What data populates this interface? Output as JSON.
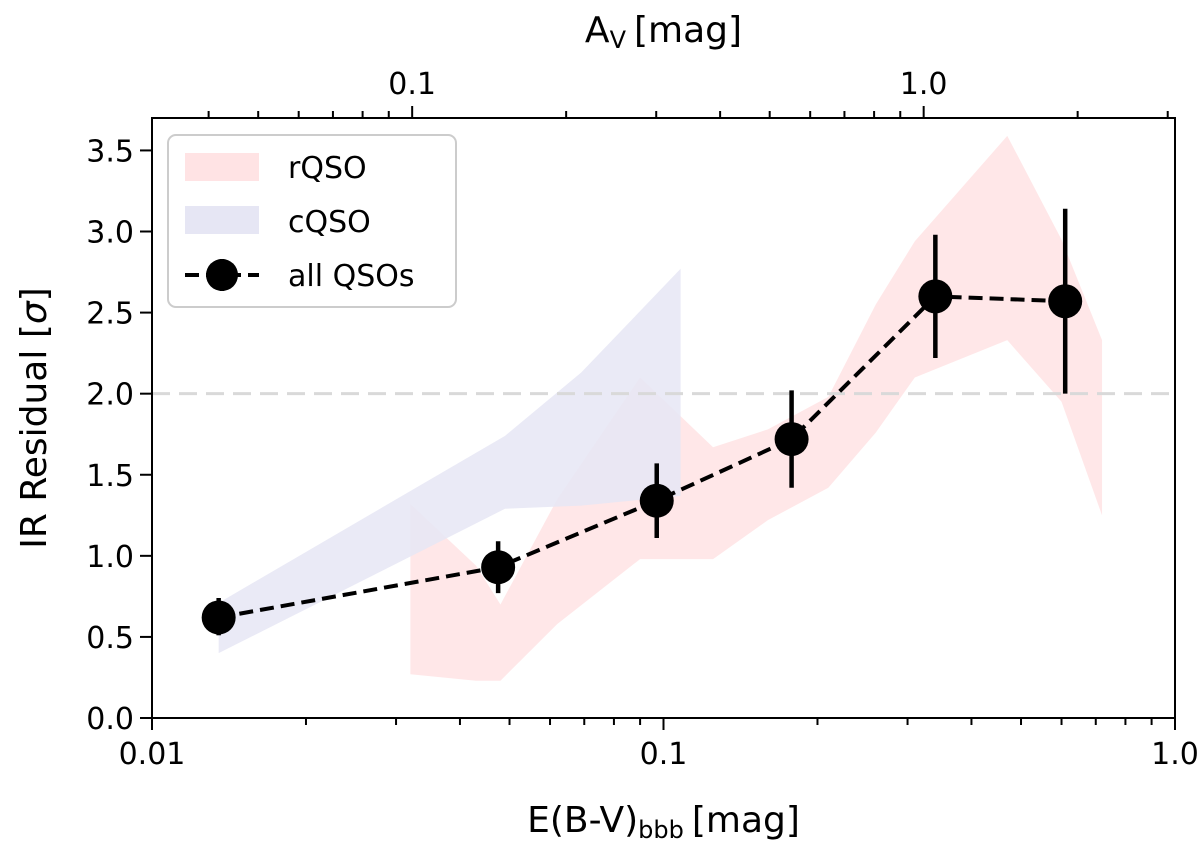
{
  "chart_data": {
    "type": "line",
    "xlabel": "E(B-V)",
    "xlabel_sub": "bbb",
    "xlabel_unit": "[mag]",
    "x_scale": "log",
    "xlim": [
      0.01,
      1.0
    ],
    "x_ticks": [
      0.01,
      0.1,
      1.0
    ],
    "x_tick_labels": [
      "0.01",
      "0.1",
      "1.0"
    ],
    "secondary_xlabel": "A",
    "secondary_xlabel_sub": "V",
    "secondary_xlabel_unit": "[mag]",
    "secondary_x_ticks": [
      0.1,
      1.0
    ],
    "secondary_x_tick_labels": [
      "0.1",
      "1.0"
    ],
    "ylabel": "IR Residual [",
    "ylabel_symbol": "σ",
    "ylabel_end": "]",
    "ylim": [
      0.0,
      3.7
    ],
    "y_ticks": [
      0.0,
      0.5,
      1.0,
      1.5,
      2.0,
      2.5,
      3.0,
      3.5
    ],
    "y_tick_labels": [
      "0.0",
      "0.5",
      "1.0",
      "1.5",
      "2.0",
      "2.5",
      "3.0",
      "3.5"
    ],
    "reference_line": {
      "y": 2.0,
      "style": "dashed",
      "color": "#d9d9d9"
    },
    "legend_position": "top-left",
    "grid": false,
    "series": [
      {
        "name": "rQSO",
        "kind": "band",
        "color": "#ffe3e4",
        "x": [
          0.032,
          0.043,
          0.048,
          0.062,
          0.09,
          0.125,
          0.16,
          0.21,
          0.26,
          0.31,
          0.47,
          0.6,
          0.72
        ],
        "lower": [
          0.27,
          0.23,
          0.23,
          0.58,
          0.98,
          0.98,
          1.22,
          1.42,
          1.76,
          2.1,
          2.33,
          1.95,
          1.25
        ],
        "upper": [
          1.32,
          0.94,
          0.7,
          1.35,
          2.1,
          1.67,
          1.78,
          1.98,
          2.55,
          2.94,
          3.59,
          2.95,
          2.33
        ]
      },
      {
        "name": "cQSO",
        "kind": "band",
        "color": "#e6e6f4",
        "x": [
          0.0135,
          0.049,
          0.069,
          0.108
        ],
        "lower": [
          0.4,
          1.29,
          1.31,
          1.37
        ],
        "upper": [
          0.71,
          1.74,
          2.13,
          2.77
        ]
      },
      {
        "name": "all QSOs",
        "kind": "points",
        "color": "#000000",
        "x": [
          0.0135,
          0.0475,
          0.097,
          0.178,
          0.34,
          0.61
        ],
        "y": [
          0.62,
          0.93,
          1.34,
          1.72,
          2.6,
          2.57
        ],
        "err_lower": [
          0.11,
          0.16,
          0.23,
          0.3,
          0.38,
          0.57
        ],
        "err_upper": [
          0.12,
          0.16,
          0.23,
          0.3,
          0.38,
          0.57
        ]
      }
    ]
  }
}
